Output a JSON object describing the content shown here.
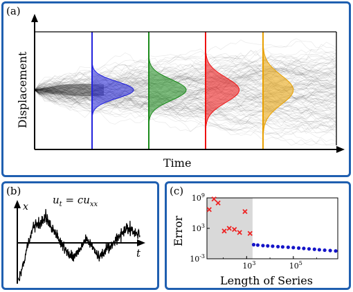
{
  "panels": {
    "a": {
      "label": "(a)"
    },
    "b": {
      "label": "(b)"
    },
    "c": {
      "label": "(c)"
    }
  },
  "chart_data": [
    {
      "panel": "a",
      "type": "line",
      "xlabel": "Time",
      "ylabel": "Displacement",
      "description_of_marks": "many random walk trajectories starting from a common point, with Gaussian density profiles at four times",
      "profile_times": [
        {
          "position": 1,
          "color": "#2222dd"
        },
        {
          "position": 2,
          "color": "#1a8a1a"
        },
        {
          "position": 3,
          "color": "#ee1111"
        },
        {
          "position": 4,
          "color": "#e8a000"
        }
      ]
    },
    {
      "panel": "b",
      "type": "line",
      "equation": "u_t = c u_xx",
      "xlabel": "t",
      "ylabel": "x"
    },
    {
      "panel": "c",
      "type": "scatter",
      "xlabel": "Length of Series",
      "ylabel": "Error",
      "xscale": "log",
      "yscale": "log",
      "yticks": [
        {
          "base": "10",
          "exp": "9",
          "value": 1000000000.0
        },
        {
          "base": "10",
          "exp": "3",
          "value": 1000.0
        },
        {
          "base": "10",
          "exp": "-3",
          "value": 0.001
        }
      ],
      "xticks": [
        {
          "base": "10",
          "exp": "3",
          "value": 1000.0
        },
        {
          "base": "10",
          "exp": "5",
          "value": 100000.0
        }
      ],
      "xlim": [
        20,
        8000000
      ],
      "ylim": [
        0.001,
        1000000000.0
      ],
      "shaded_region_x": [
        20,
        1800
      ],
      "series": [
        {
          "marker": "x",
          "color": "#ee2222",
          "x": [
            25,
            40,
            60,
            110,
            180,
            300,
            500,
            850,
            1400
          ],
          "y": [
            5000000.0,
            600000000.0,
            100000000.0,
            300.0,
            1000.0,
            600.0,
            150.0,
            2000000.0,
            100.0
          ]
        },
        {
          "marker": "dot",
          "color": "#1515c8",
          "x": [
            2000,
            3000,
            5000,
            8000,
            13000,
            22000,
            35000,
            60000,
            100000,
            170000,
            280000,
            470000,
            800000,
            1300000,
            2200000,
            3800000,
            6500000
          ],
          "y": [
            0.6,
            0.5,
            0.4,
            0.35,
            0.3,
            0.25,
            0.22,
            0.19,
            0.16,
            0.13,
            0.11,
            0.09,
            0.075,
            0.06,
            0.05,
            0.042,
            0.035
          ]
        }
      ]
    }
  ]
}
